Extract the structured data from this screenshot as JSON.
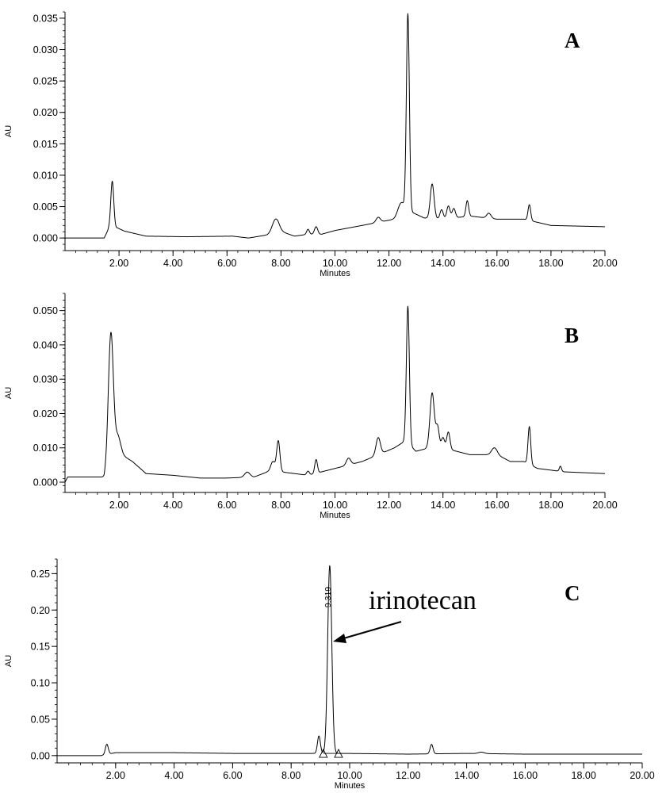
{
  "chart_data": [
    {
      "type": "line",
      "panel_label": "A",
      "xlabel": "Minutes",
      "ylabel": "AU",
      "xlim": [
        0,
        20
      ],
      "ylim": [
        -0.002,
        0.036
      ],
      "x_ticks": [
        2,
        4,
        6,
        8,
        10,
        12,
        14,
        16,
        18,
        20
      ],
      "x_tick_labels": [
        "2.00",
        "4.00",
        "6.00",
        "8.00",
        "10.00",
        "12.00",
        "14.00",
        "16.00",
        "18.00",
        "20.00"
      ],
      "y_ticks": [
        0,
        0.005,
        0.01,
        0.015,
        0.02,
        0.025,
        0.03,
        0.035
      ],
      "y_tick_labels": [
        "0.000",
        "0.005",
        "0.010",
        "0.015",
        "0.020",
        "0.025",
        "0.030",
        "0.035"
      ],
      "baseline": [
        [
          0,
          0
        ],
        [
          1.45,
          0
        ],
        [
          1.62,
          0.0015
        ],
        [
          1.95,
          0.0016
        ],
        [
          2.2,
          0.0011
        ],
        [
          3.0,
          0.0003
        ],
        [
          4.5,
          0.0002
        ],
        [
          6.2,
          0.0003
        ],
        [
          6.8,
          0.0
        ],
        [
          7.5,
          0.0005
        ],
        [
          7.9,
          0.0012
        ],
        [
          8.5,
          0.0003
        ],
        [
          9.0,
          0.0006
        ],
        [
          9.5,
          0.0006
        ],
        [
          10.0,
          0.0012
        ],
        [
          11.0,
          0.002
        ],
        [
          12.2,
          0.003
        ],
        [
          12.6,
          0.004
        ],
        [
          12.9,
          0.004
        ],
        [
          13.3,
          0.0032
        ],
        [
          14.0,
          0.003
        ],
        [
          15.0,
          0.0035
        ],
        [
          16.0,
          0.003
        ],
        [
          17.0,
          0.003
        ],
        [
          18.0,
          0.002
        ],
        [
          20.0,
          0.0018
        ]
      ],
      "peaks": [
        [
          1.75,
          0.0075,
          0.055
        ],
        [
          7.8,
          0.002,
          0.12
        ],
        [
          9.0,
          0.0008,
          0.05
        ],
        [
          9.3,
          0.0012,
          0.06
        ],
        [
          11.6,
          0.0008,
          0.08
        ],
        [
          12.7,
          0.0315,
          0.055
        ],
        [
          12.45,
          0.002,
          0.12
        ],
        [
          13.6,
          0.0055,
          0.07
        ],
        [
          13.95,
          0.0015,
          0.06
        ],
        [
          14.2,
          0.002,
          0.06
        ],
        [
          14.4,
          0.0015,
          0.06
        ],
        [
          14.9,
          0.0025,
          0.05
        ],
        [
          15.7,
          0.0008,
          0.08
        ],
        [
          17.2,
          0.0025,
          0.05
        ]
      ]
    },
    {
      "type": "line",
      "panel_label": "B",
      "xlabel": "Minutes",
      "ylabel": "AU",
      "xlim": [
        0,
        20
      ],
      "ylim": [
        -0.003,
        0.055
      ],
      "x_ticks": [
        2,
        4,
        6,
        8,
        10,
        12,
        14,
        16,
        18,
        20
      ],
      "x_tick_labels": [
        "2.00",
        "4.00",
        "6.00",
        "8.00",
        "10.00",
        "12.00",
        "14.00",
        "16.00",
        "18.00",
        "20.00"
      ],
      "y_ticks": [
        0,
        0.01,
        0.02,
        0.03,
        0.04,
        0.05
      ],
      "y_tick_labels": [
        "0.000",
        "0.010",
        "0.020",
        "0.030",
        "0.040",
        "0.050"
      ],
      "baseline": [
        [
          0,
          0.0
        ],
        [
          0.1,
          0.0015
        ],
        [
          1.45,
          0.0015
        ],
        [
          1.6,
          0.006
        ],
        [
          2.1,
          0.008
        ],
        [
          2.5,
          0.006
        ],
        [
          3.0,
          0.0025
        ],
        [
          4.0,
          0.002
        ],
        [
          5.0,
          0.0012
        ],
        [
          6.0,
          0.0012
        ],
        [
          7.0,
          0.0015
        ],
        [
          7.5,
          0.003
        ],
        [
          8.0,
          0.003
        ],
        [
          8.5,
          0.0025
        ],
        [
          9.0,
          0.002
        ],
        [
          9.5,
          0.003
        ],
        [
          10.0,
          0.004
        ],
        [
          11.0,
          0.006
        ],
        [
          12.2,
          0.01
        ],
        [
          12.6,
          0.012
        ],
        [
          13.0,
          0.009
        ],
        [
          13.5,
          0.01
        ],
        [
          14.0,
          0.01
        ],
        [
          15.0,
          0.008
        ],
        [
          16.0,
          0.008
        ],
        [
          16.5,
          0.006
        ],
        [
          17.0,
          0.006
        ],
        [
          17.5,
          0.004
        ],
        [
          18.5,
          0.003
        ],
        [
          20.0,
          0.0025
        ]
      ],
      "peaks": [
        [
          1.7,
          0.037,
          0.09
        ],
        [
          1.95,
          0.006,
          0.1
        ],
        [
          6.75,
          0.0015,
          0.1
        ],
        [
          7.7,
          0.003,
          0.08
        ],
        [
          7.9,
          0.009,
          0.06
        ],
        [
          9.3,
          0.004,
          0.05
        ],
        [
          9.0,
          0.0012,
          0.05
        ],
        [
          10.5,
          0.002,
          0.08
        ],
        [
          11.6,
          0.005,
          0.08
        ],
        [
          12.7,
          0.04,
          0.055
        ],
        [
          13.6,
          0.016,
          0.08
        ],
        [
          13.8,
          0.006,
          0.06
        ],
        [
          14.0,
          0.003,
          0.06
        ],
        [
          14.2,
          0.005,
          0.06
        ],
        [
          15.9,
          0.002,
          0.1
        ],
        [
          17.2,
          0.011,
          0.05
        ],
        [
          18.35,
          0.0015,
          0.04
        ]
      ]
    },
    {
      "type": "line",
      "panel_label": "C",
      "xlabel": "Minutes",
      "ylabel": "AU",
      "xlim": [
        0,
        20
      ],
      "ylim": [
        -0.01,
        0.27
      ],
      "x_ticks": [
        2,
        4,
        6,
        8,
        10,
        12,
        14,
        16,
        18,
        20
      ],
      "x_tick_labels": [
        "2.00",
        "4.00",
        "6.00",
        "8.00",
        "10.00",
        "12.00",
        "14.00",
        "16.00",
        "18.00",
        "20.00"
      ],
      "y_ticks": [
        0,
        0.05,
        0.1,
        0.15,
        0.2,
        0.25
      ],
      "y_tick_labels": [
        "0.00",
        "0.05",
        "0.10",
        "0.15",
        "0.20",
        "0.25"
      ],
      "baseline": [
        [
          0,
          0.0
        ],
        [
          1.5,
          0.0
        ],
        [
          2.0,
          0.004
        ],
        [
          4.0,
          0.004
        ],
        [
          6.0,
          0.003
        ],
        [
          8.0,
          0.003
        ],
        [
          8.8,
          0.003
        ],
        [
          9.8,
          0.003
        ],
        [
          12.0,
          0.002
        ],
        [
          14.0,
          0.003
        ],
        [
          16.0,
          0.002
        ],
        [
          20.0,
          0.002
        ]
      ],
      "peaks": [
        [
          1.7,
          0.014,
          0.05
        ],
        [
          8.95,
          0.024,
          0.05
        ],
        [
          9.319,
          0.258,
          0.07
        ],
        [
          12.8,
          0.013,
          0.05
        ],
        [
          14.5,
          0.002,
          0.1
        ]
      ],
      "peak_label": "9.319",
      "peak_label_x": 9.319,
      "annotation": "irinotecan",
      "integration_markers_x": [
        9.1,
        9.62
      ]
    }
  ]
}
